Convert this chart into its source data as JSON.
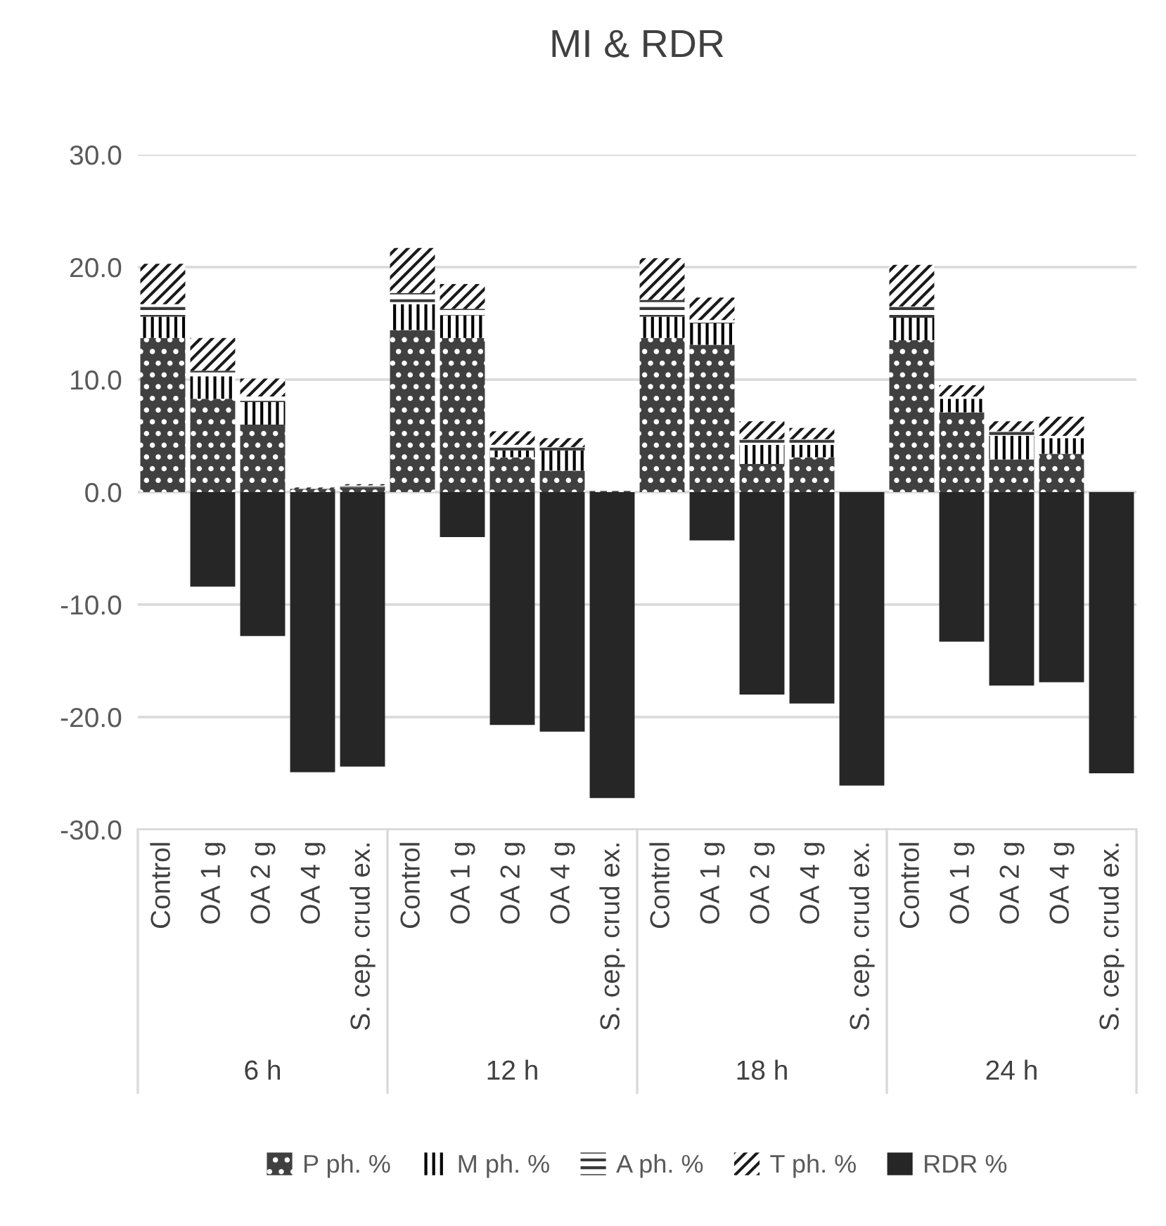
{
  "chart_data": {
    "type": "bar",
    "title": "MI & RDR",
    "stacked": true,
    "categories": [
      "Control",
      "OA 1 g",
      "OA 2 g",
      "OA 4 g",
      "S. cep. crud ex.",
      "Control",
      "OA 1 g",
      "OA 2 g",
      "OA 4 g",
      "S. cep. crud ex.",
      "Control",
      "OA 1 g",
      "OA 2 g",
      "OA 4 g",
      "S. cep. crud ex.",
      "Control",
      "OA 1 g",
      "OA 2 g",
      "OA 4 g",
      "S. cep. crud ex."
    ],
    "annotations": [
      "6 h",
      "12 h",
      "18 h",
      "24 h"
    ],
    "series": [
      {
        "name": "P ph. %",
        "color": "#404040",
        "values": [
          13.7,
          8.3,
          6.0,
          0.3,
          0.4,
          14.4,
          13.7,
          3.1,
          1.9,
          0.1,
          13.7,
          13.1,
          2.5,
          3.1,
          0,
          13.5,
          7.1,
          2.9,
          3.4,
          0
        ]
      },
      {
        "name": "M ph. %",
        "color": "#000000",
        "values": [
          1.9,
          2.0,
          2.0,
          0,
          0,
          2.3,
          2.0,
          0.6,
          1.8,
          0,
          1.9,
          1.9,
          1.7,
          1.1,
          0,
          2.0,
          1.2,
          2.1,
          1.4,
          0
        ]
      },
      {
        "name": "A ph. %",
        "color": "#3a3a3a",
        "values": [
          1.1,
          0.5,
          0.5,
          0,
          0.2,
          1.0,
          0.6,
          0.5,
          0.3,
          0,
          1.5,
          0.3,
          0.5,
          0.5,
          0,
          1.0,
          0.2,
          0.4,
          0.2,
          0
        ]
      },
      {
        "name": "T ph. %",
        "color": "#1a1a1a",
        "values": [
          3.6,
          2.9,
          1.6,
          0.1,
          0.1,
          4.0,
          2.2,
          1.2,
          0.8,
          0,
          3.7,
          2.0,
          1.6,
          1.0,
          0,
          3.7,
          1.0,
          0.9,
          1.7,
          0
        ]
      },
      {
        "name": "RDR %",
        "color": "#262626",
        "values": [
          0,
          -8.4,
          -12.8,
          -24.9,
          -24.4,
          0,
          -4.0,
          -20.7,
          -21.3,
          -27.2,
          0,
          -4.3,
          -18.0,
          -18.8,
          -26.1,
          0,
          -13.3,
          -17.2,
          -16.9,
          -25.0
        ]
      }
    ],
    "ylim": [
      -30,
      30
    ],
    "yticks": [
      {
        "value": -30,
        "label": "-30.0"
      },
      {
        "value": -20,
        "label": "-20.0"
      },
      {
        "value": -10,
        "label": "-10.0"
      },
      {
        "value": 0,
        "label": "0.0"
      },
      {
        "value": 10,
        "label": "10.0"
      },
      {
        "value": 20,
        "label": "20.0"
      },
      {
        "value": 30,
        "label": "30.0"
      }
    ],
    "grid": "y",
    "legend": "bottom"
  }
}
